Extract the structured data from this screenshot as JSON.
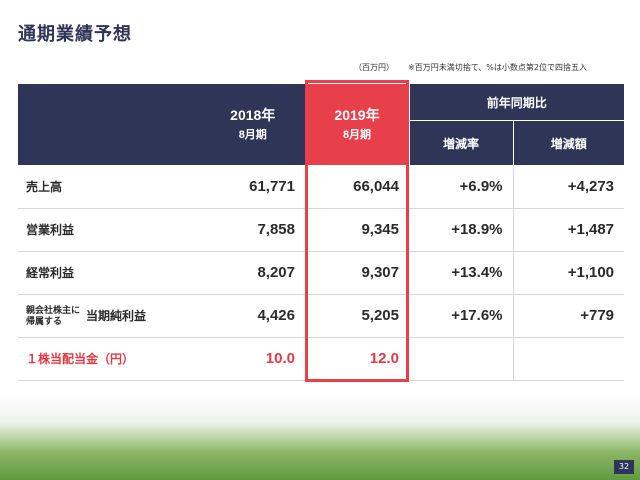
{
  "title": "通期業績予想",
  "unit_note": "（百万円）",
  "rounding_note": "※百万円未満切捨て、%は小数点第2位で四捨五入",
  "header": {
    "y2018_line1": "2018年",
    "y2018_line2": "8月期",
    "y2019_line1": "2019年",
    "y2019_line2": "8月期",
    "yoy": "前年同期比",
    "rate": "増減率",
    "amount": "増減額"
  },
  "rows": [
    {
      "label": "売上高",
      "v2018": "61,771",
      "v2019": "66,044",
      "rate": "+6.9%",
      "amount": "+4,273"
    },
    {
      "label": "営業利益",
      "v2018": "7,858",
      "v2019": "9,345",
      "rate": "+18.9%",
      "amount": "+1,487"
    },
    {
      "label": "経常利益",
      "v2018": "8,207",
      "v2019": "9,307",
      "rate": "+13.4%",
      "amount": "+1,100"
    },
    {
      "label_small_1": "親会社株主に",
      "label_small_2": "帰属する",
      "label": "当期純利益",
      "v2018": "4,426",
      "v2019": "5,205",
      "rate": "+17.6%",
      "amount": "+779"
    },
    {
      "label": "１株当配当金（円）",
      "v2018": "10.0",
      "v2019": "12.0",
      "rate": "",
      "amount": ""
    }
  ],
  "colors": {
    "navy": "#2e3557",
    "highlight": "#e8404a"
  },
  "page_number": "32"
}
